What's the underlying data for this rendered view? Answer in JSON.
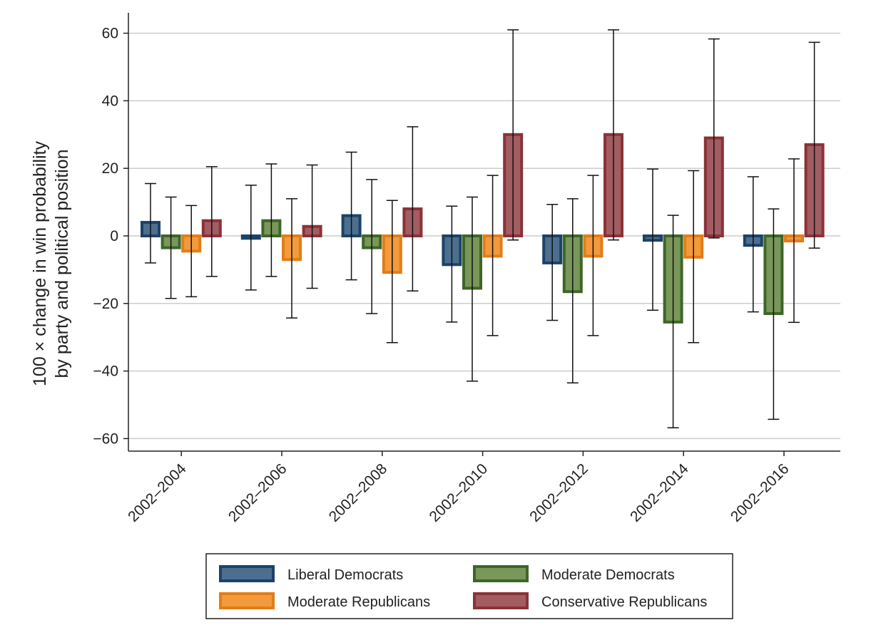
{
  "chart_data": {
    "type": "bar",
    "title": "",
    "xlabel": "",
    "ylabel_lines": [
      "100 × change in win  probability",
      "by party and political position"
    ],
    "categories": [
      "2002–2004",
      "2002–2006",
      "2002–2008",
      "2002–2010",
      "2002–2012",
      "2002–2014",
      "2002–2016"
    ],
    "yticks": [
      60,
      40,
      20,
      0,
      -20,
      -40,
      -60
    ],
    "ytick_labels": [
      "60",
      "40",
      "20",
      "0",
      "−20",
      "−40",
      "−60"
    ],
    "ylim": [
      -64,
      65
    ],
    "grid": true,
    "legend_placement": "bottom",
    "series": [
      {
        "name": "Liberal Democrats",
        "fill": "#4d6f8f",
        "stroke": "#1c4268",
        "values": [
          4,
          -0.7,
          6,
          -8.5,
          -8,
          -1.3,
          -2.8
        ],
        "ci_low": [
          -8,
          -16,
          -13,
          -25.5,
          -25,
          -22,
          -22.5
        ],
        "ci_high": [
          15.5,
          15,
          24.8,
          8.8,
          9.3,
          19.8,
          17.5
        ]
      },
      {
        "name": "Moderate Democrats",
        "fill": "#79975a",
        "stroke": "#3f6528",
        "values": [
          -3.5,
          4.5,
          -3.5,
          -15.5,
          -16.5,
          -25.5,
          -23
        ],
        "ci_low": [
          -18.5,
          -12,
          -23,
          -43,
          -43.5,
          -56.8,
          -54.3
        ],
        "ci_high": [
          11.5,
          21.3,
          16.7,
          11.5,
          11,
          6.1,
          8
        ],
        "legend_col": 2
      },
      {
        "name": "Moderate Republicans",
        "fill": "#f39a3d",
        "stroke": "#e27d18",
        "values": [
          -4.5,
          -7,
          -10.8,
          -6,
          -6,
          -6.3,
          -1.5
        ],
        "ci_low": [
          -18,
          -24.3,
          -31.6,
          -29.5,
          -29.5,
          -31.6,
          -25.6
        ],
        "ci_high": [
          9,
          11,
          10.5,
          17.9,
          17.9,
          19.3,
          22.8
        ]
      },
      {
        "name": "Conservative Republicans",
        "fill": "#a25d62",
        "stroke": "#8a3238",
        "values": [
          4.5,
          2.8,
          8,
          30,
          30,
          29,
          27
        ],
        "ci_low": [
          -12,
          -15.5,
          -16.3,
          -1.2,
          -1.2,
          -0.6,
          -3.6
        ],
        "ci_high": [
          20.5,
          21,
          32.3,
          61,
          61,
          58.3,
          57.3
        ]
      }
    ]
  }
}
